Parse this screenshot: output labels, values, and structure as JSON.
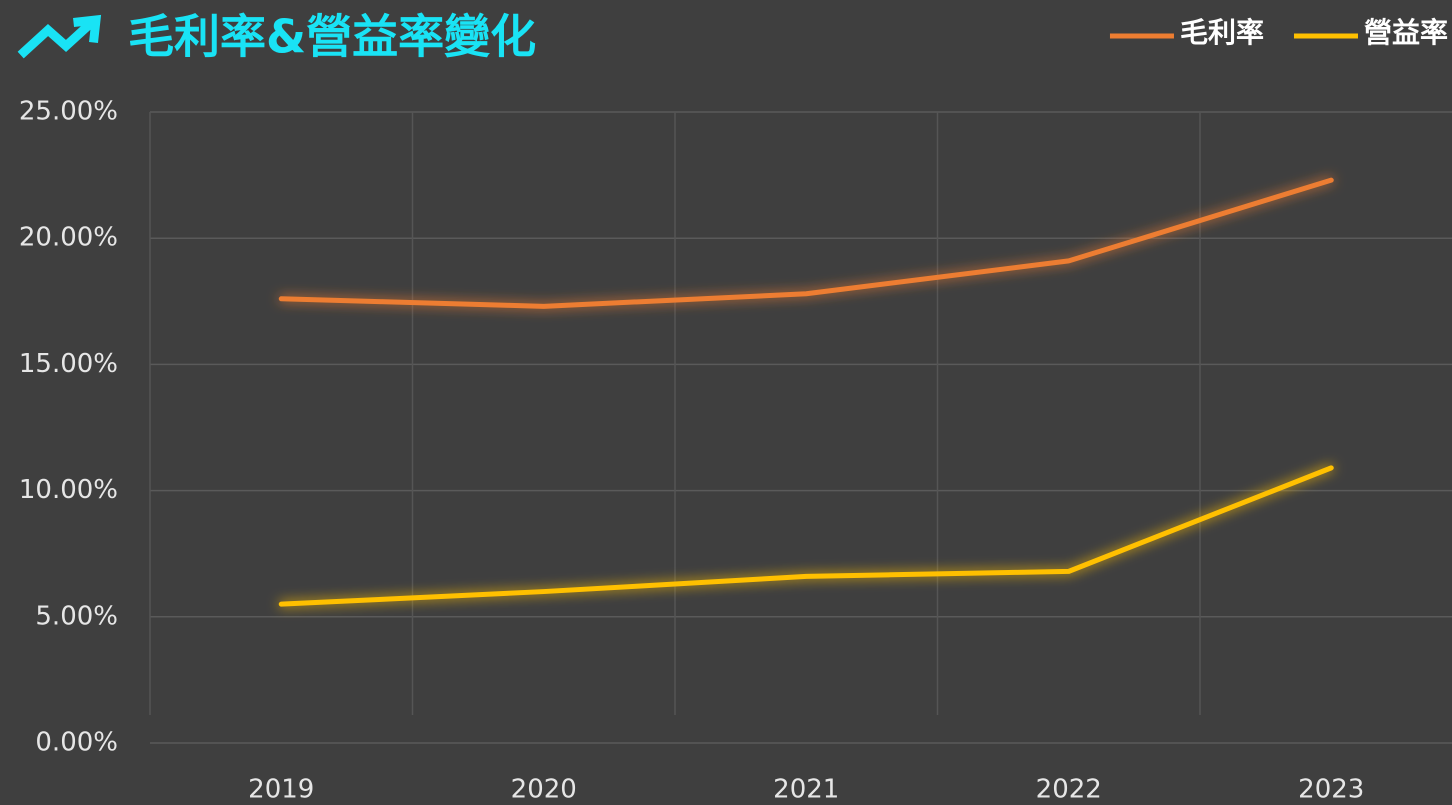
{
  "chart_data": {
    "type": "line",
    "title": "毛利率&營益率變化",
    "categories": [
      "2019",
      "2020",
      "2021",
      "2022",
      "2023"
    ],
    "series": [
      {
        "name": "毛利率",
        "color": "#ed7d31",
        "values": [
          17.6,
          17.3,
          17.8,
          19.1,
          22.3
        ]
      },
      {
        "name": "營益率",
        "color": "#ffc000",
        "values": [
          5.5,
          6.0,
          6.6,
          6.8,
          10.9
        ]
      }
    ],
    "ylim": [
      0,
      25
    ],
    "yticks": [
      {
        "value": 0,
        "label": "0.00%"
      },
      {
        "value": 5,
        "label": "5.00%"
      },
      {
        "value": 10,
        "label": "10.00%"
      },
      {
        "value": 15,
        "label": "15.00%"
      },
      {
        "value": 20,
        "label": "20.00%"
      },
      {
        "value": 25,
        "label": "25.00%"
      }
    ],
    "grid": true,
    "legend": "top-right"
  }
}
